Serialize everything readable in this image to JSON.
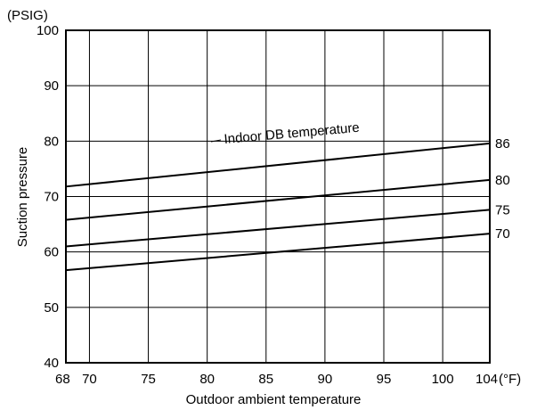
{
  "chart_data": {
    "type": "line",
    "unit_y": "(PSIG)",
    "unit_x": "(°F)",
    "xlabel": "Outdoor ambient temperature",
    "ylabel": "Suction pressure",
    "xlim": [
      68,
      104
    ],
    "ylim": [
      40,
      100
    ],
    "x_ticks": [
      68,
      70,
      75,
      80,
      85,
      90,
      95,
      100,
      104
    ],
    "x_tick_labels": [
      "68",
      "70",
      "75",
      "80",
      "85",
      "90",
      "95",
      "100",
      "104"
    ],
    "y_ticks": [
      40,
      50,
      60,
      70,
      80,
      90,
      100
    ],
    "y_tick_labels": [
      "40",
      "50",
      "60",
      "70",
      "80",
      "90",
      "100"
    ],
    "grid": true,
    "annotation": "Indoor DB temperature",
    "series": [
      {
        "name": "86",
        "x": [
          68,
          104
        ],
        "y": [
          71.8,
          79.6
        ]
      },
      {
        "name": "80",
        "x": [
          68,
          104
        ],
        "y": [
          65.8,
          73.0
        ]
      },
      {
        "name": "75",
        "x": [
          68,
          104
        ],
        "y": [
          61.0,
          67.6
        ]
      },
      {
        "name": "70",
        "x": [
          68,
          104
        ],
        "y": [
          56.7,
          63.3
        ]
      }
    ]
  }
}
